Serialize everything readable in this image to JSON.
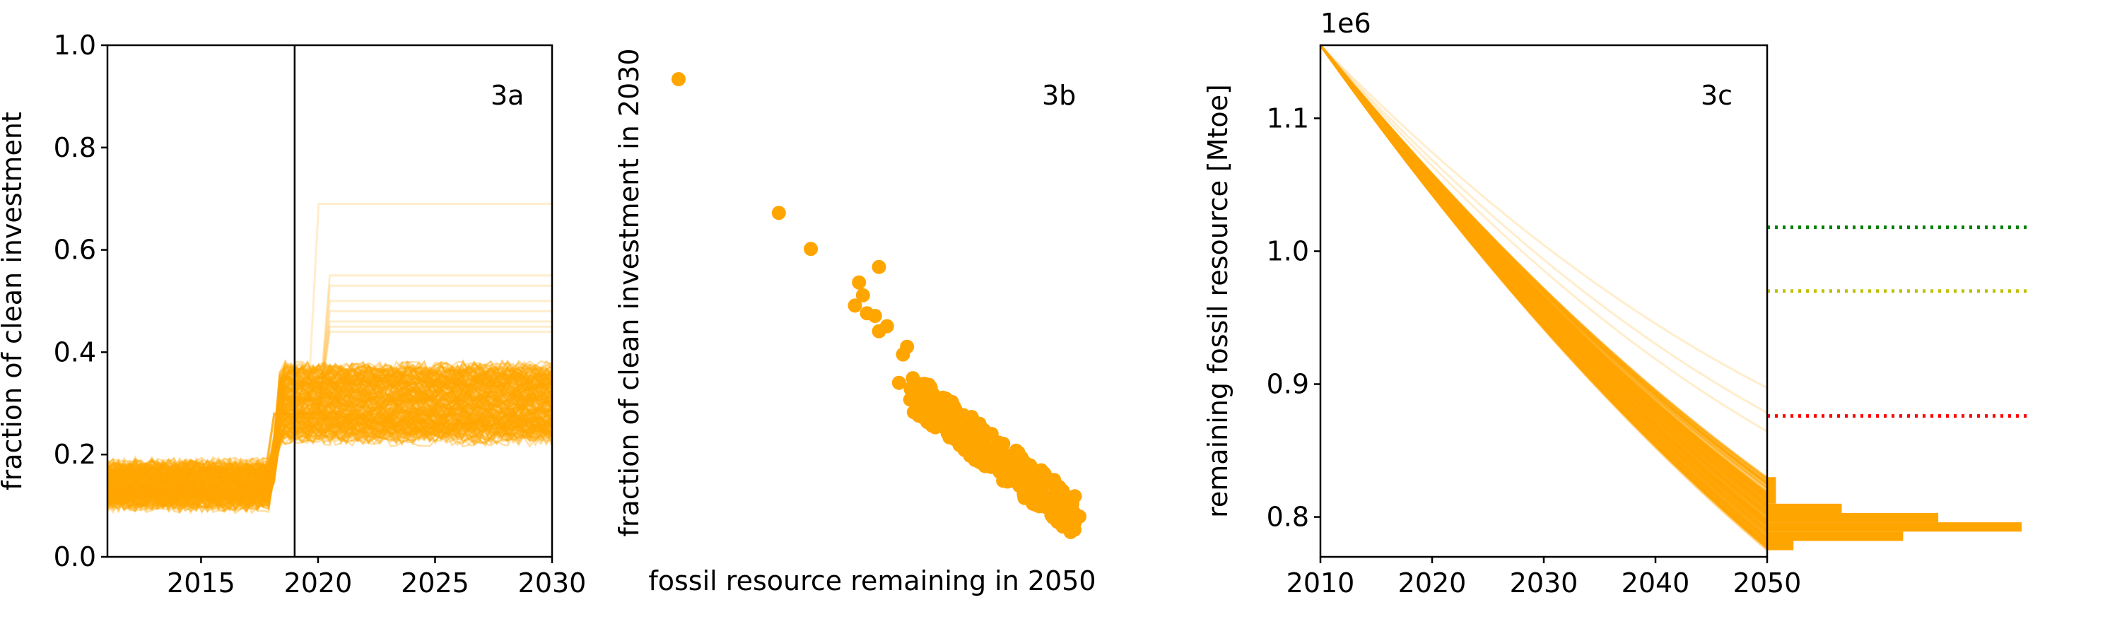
{
  "chart_data": [
    {
      "type": "line",
      "panel_label": "3a",
      "ylabel": "fraction of clean investment",
      "xlabel": "",
      "xlim": [
        2011,
        2030
      ],
      "ylim": [
        0.0,
        1.0
      ],
      "xticks": [
        2015,
        2020,
        2025,
        2030
      ],
      "yticks": [
        0.0,
        0.2,
        0.4,
        0.6,
        0.8,
        1.0
      ],
      "ytick_labels": [
        "0.0",
        "0.2",
        "0.4",
        "0.6",
        "0.8",
        "1.0"
      ],
      "vertical_line_x": 2019,
      "color": "#ffa500",
      "band_before_2018": {
        "low": 0.1,
        "high": 0.18
      },
      "jump_year": 2018,
      "band_after_2019": {
        "low": 0.23,
        "high": 0.37
      },
      "outlier_levels_2030": [
        0.69,
        0.55,
        0.53,
        0.5,
        0.48,
        0.46,
        0.45,
        0.44
      ]
    },
    {
      "type": "scatter",
      "panel_label": "3b",
      "ylabel": "fraction of clean investment in 2030",
      "xlabel": "fossil resource remaining in 2050",
      "color": "#ffa500",
      "points": [
        [
          0.0,
          0.93
        ],
        [
          0.25,
          0.67
        ],
        [
          0.33,
          0.6
        ],
        [
          0.5,
          0.565
        ],
        [
          0.45,
          0.535
        ],
        [
          0.46,
          0.51
        ],
        [
          0.44,
          0.49
        ],
        [
          0.47,
          0.475
        ],
        [
          0.49,
          0.47
        ],
        [
          0.52,
          0.45
        ],
        [
          0.5,
          0.44
        ],
        [
          0.57,
          0.41
        ],
        [
          0.56,
          0.395
        ],
        [
          0.55,
          0.34
        ],
        [
          0.58,
          0.33
        ],
        [
          0.6,
          0.32
        ],
        [
          0.62,
          0.335
        ],
        [
          0.64,
          0.31
        ],
        [
          0.6,
          0.3
        ],
        [
          0.63,
          0.29
        ],
        [
          0.66,
          0.28
        ],
        [
          0.68,
          0.27
        ],
        [
          0.65,
          0.26
        ],
        [
          0.7,
          0.25
        ],
        [
          0.72,
          0.24
        ],
        [
          0.69,
          0.23
        ],
        [
          0.74,
          0.22
        ],
        [
          0.76,
          0.21
        ],
        [
          0.73,
          0.2
        ],
        [
          0.78,
          0.19
        ],
        [
          0.8,
          0.18
        ],
        [
          0.82,
          0.16
        ],
        [
          0.85,
          0.14
        ],
        [
          0.88,
          0.12
        ],
        [
          0.9,
          0.1
        ],
        [
          0.95,
          0.08
        ],
        [
          1.0,
          0.08
        ]
      ]
    },
    {
      "type": "line",
      "panel_label": "3c",
      "ylabel": "remaining fossil resource [Mtoe]",
      "offset_text": "1e6",
      "xlim": [
        2010,
        2050
      ],
      "ylim": [
        0.77,
        1.155
      ],
      "xticks": [
        2010,
        2020,
        2030,
        2040,
        2050
      ],
      "yticks": [
        0.8,
        0.9,
        1.0,
        1.1
      ],
      "ytick_labels": [
        "0.8",
        "0.9",
        "1.0",
        "1.1"
      ],
      "color": "#ffa500",
      "start_value": 1.155,
      "end_band": {
        "low": 0.775,
        "high": 0.83
      },
      "outlier_ends": [
        0.88,
        0.86,
        0.845
      ],
      "reference_lines": [
        {
          "value": 1.018,
          "color": "#008000"
        },
        {
          "value": 0.97,
          "color": "#bfbf00"
        },
        {
          "value": 0.876,
          "color": "#ff0000"
        }
      ],
      "histogram": {
        "orientation": "horizontal",
        "bins": [
          {
            "low": 0.775,
            "high": 0.782,
            "count": 6
          },
          {
            "low": 0.782,
            "high": 0.789,
            "count": 31
          },
          {
            "low": 0.789,
            "high": 0.796,
            "count": 58
          },
          {
            "low": 0.796,
            "high": 0.803,
            "count": 39
          },
          {
            "low": 0.803,
            "high": 0.81,
            "count": 17
          },
          {
            "low": 0.81,
            "high": 0.83,
            "count": 2
          }
        ],
        "max_count": 58
      }
    }
  ]
}
